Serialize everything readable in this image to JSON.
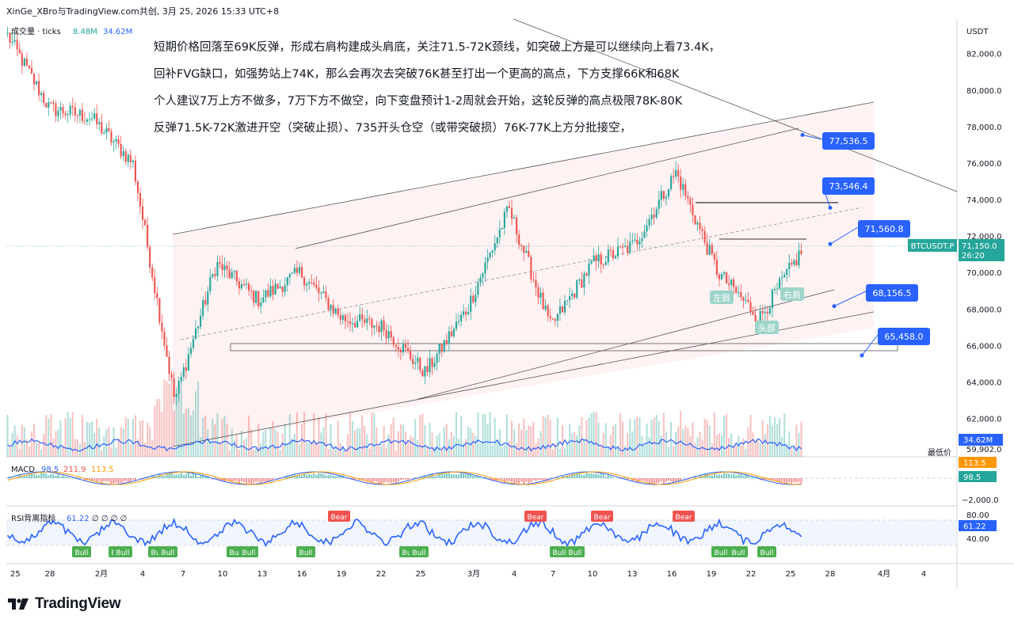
{
  "header": {
    "caption": "XinGe_XBro与TradingView.com共创, 3月 25, 2026 15:33 UTC+8"
  },
  "volume_legend": {
    "label": "成交量 · ticks",
    "value1": "8.48M",
    "value2": "34.62M"
  },
  "annotation": {
    "lines": [
      "短期价格回落至69K反弹，形成右肩构建成头肩底，关注71.5-72K颈线，如突破上方是可以继续向上看73.4K，",
      "回补FVG缺口，如强势站上74K，那么会再次去突破76K甚至打出一个更高的高点，下方支撑66K和68K",
      "个人建议7万上方不做多，7万下方不做空，向下变盘预计1-2周就会开始，这轮反弹的高点极限78K-80K",
      "反弹71.5K-72K激进开空（突破止损）、735开头仓空（或带突破损）76K-77K上方分批接空，"
    ]
  },
  "price_axis": {
    "currency": "USDT",
    "ticks": [
      "82,000.0",
      "80,000.0",
      "78,000.0",
      "76,000.0",
      "74,000.0",
      "72,000.0",
      "70,000.0",
      "68,000.0",
      "66,000.0",
      "64,000.0",
      "62,000.0",
      "59,902.0"
    ],
    "min_label": "最低价",
    "symbol_tag": "BTCUSDT.P",
    "last_price": "71,150.0",
    "countdown": "26:20",
    "volume_tag": "34.62M"
  },
  "price_labels": [
    {
      "value": 77536.5,
      "text": "77,536.5"
    },
    {
      "value": 73546.4,
      "text": "73,546.4"
    },
    {
      "value": 71560.8,
      "text": "71,560.8"
    },
    {
      "value": 68156.5,
      "text": "68,156.5"
    },
    {
      "value": 65458.0,
      "text": "65,458.0"
    }
  ],
  "pattern_labels": {
    "left_shoulder": "左肩",
    "head": "头部",
    "right_shoulder": "右肩"
  },
  "macd": {
    "label": "MACD",
    "v1": "98.5",
    "v2": "211.9",
    "v3": "113.5",
    "tag1": "113.5",
    "tag2": "98.5",
    "axis_label": "−2,000.0"
  },
  "rsi": {
    "label": "RSI背离指标",
    "value": "61.22",
    "extra": "∅ ∅ ∅ ∅",
    "tag": "61.22",
    "axis_top": "80.00",
    "axis_bottom": "40.00",
    "bull_label": "Bull",
    "bear_label": "Bear"
  },
  "time_axis": [
    "25",
    "28",
    "2月",
    "4",
    "7",
    "10",
    "13",
    "16",
    "19",
    "22",
    "25",
    "3月",
    "4",
    "7",
    "10",
    "13",
    "16",
    "19",
    "22",
    "25",
    "28",
    "4月",
    "4"
  ],
  "footer": {
    "brand": "TradingView"
  },
  "colors": {
    "up": "#26a69a",
    "down": "#ef5350",
    "blue": "#2962ff",
    "rsi": "#2962ff",
    "macd_orange": "#ff9800"
  },
  "chart_data": {
    "type": "line",
    "title": "",
    "y_unit": "USDT",
    "ylim": [
      59902,
      83200
    ],
    "x": [
      "1月25",
      "1月28",
      "2月1",
      "2月4",
      "2月7",
      "2月10",
      "2月13",
      "2月16",
      "2月19",
      "2月22",
      "2月25",
      "3月1",
      "3月4",
      "3月7",
      "3月10",
      "3月13",
      "3月16",
      "3月19",
      "3月22",
      "3月25"
    ],
    "series": [
      {
        "values": [
          83000,
          79000,
          78500,
          76000,
          63000,
          70500,
          68500,
          70000,
          67500,
          67000,
          64500,
          68000,
          73500,
          67000,
          70500,
          71500,
          75500,
          70000,
          67500,
          71150
        ]
      }
    ],
    "levels": [
      77536.5,
      73546.4,
      71560.8,
      68156.5,
      65458.0
    ]
  }
}
